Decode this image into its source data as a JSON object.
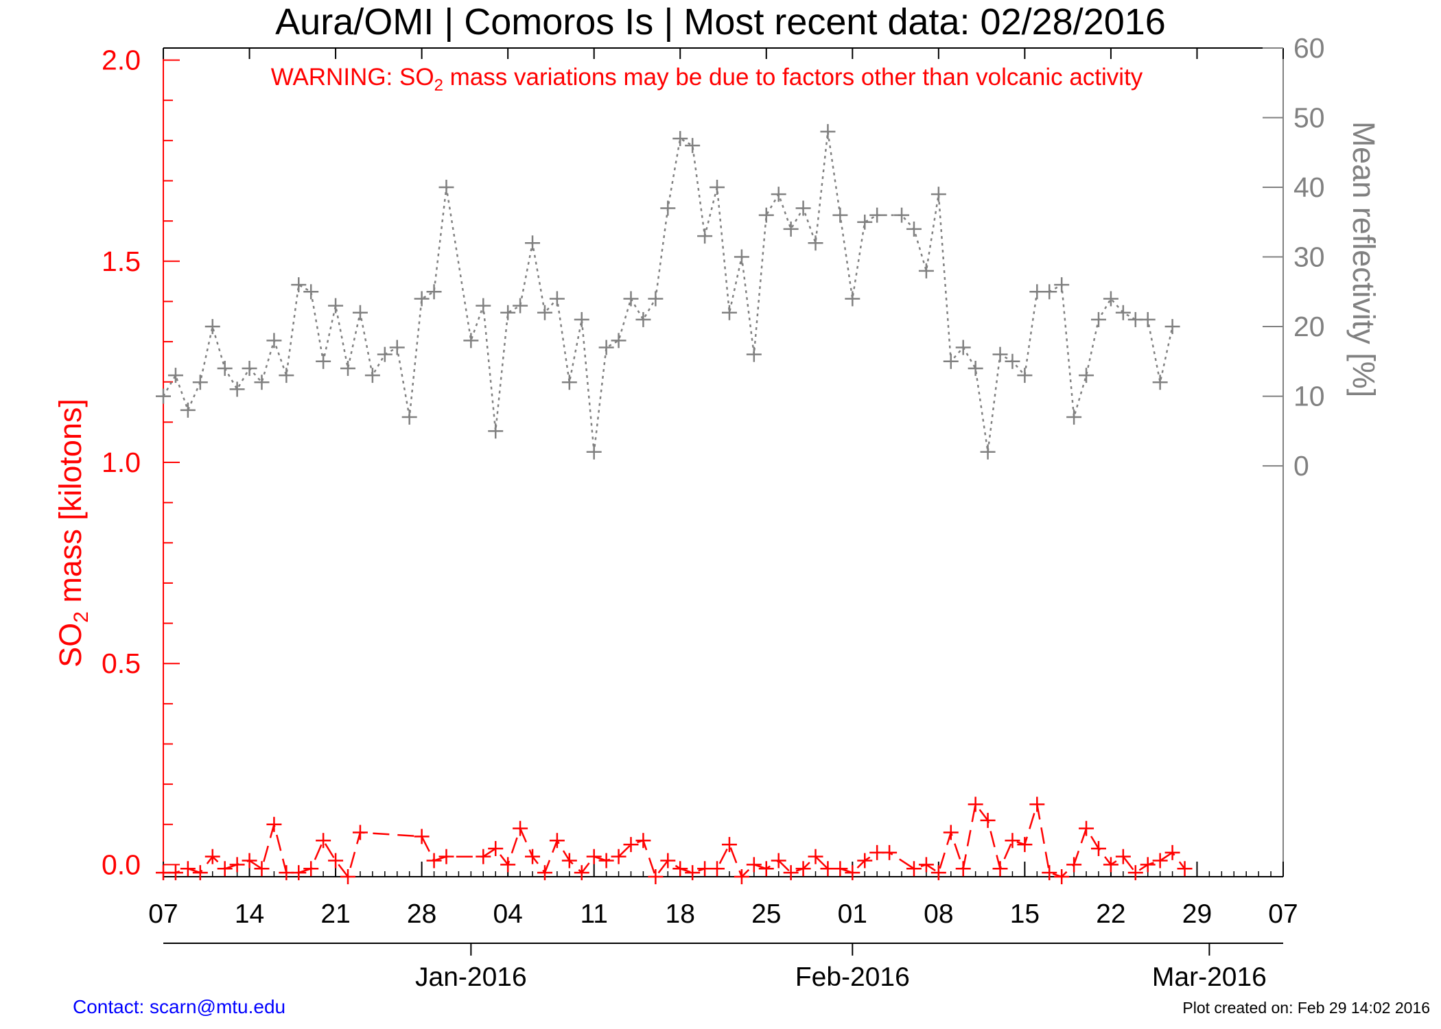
{
  "title": "Aura/OMI | Comoros Is | Most recent data: 02/28/2016",
  "warning": {
    "prefix": "WARNING: SO",
    "sub": "2",
    "suffix": " mass variations may be due to factors other than volcanic activity"
  },
  "footer": {
    "contact": "Contact: scarn@mtu.edu",
    "created": "Plot created on: Feb 29 14:02 2016"
  },
  "colors": {
    "so2": "#ff0000",
    "reflectivity": "#808080",
    "axis": "#000000"
  },
  "chart_data": {
    "type": "line",
    "x_start": "2015-12-07",
    "x_end": "2016-03-07",
    "x_ticks": [
      "07",
      "14",
      "21",
      "28",
      "04",
      "11",
      "18",
      "25",
      "01",
      "08",
      "15",
      "22",
      "29",
      "07"
    ],
    "x_tick_dates": [
      "2015-12-07",
      "2015-12-14",
      "2015-12-21",
      "2015-12-28",
      "2016-01-04",
      "2016-01-11",
      "2016-01-18",
      "2016-01-25",
      "2016-02-01",
      "2016-02-08",
      "2016-02-15",
      "2016-02-22",
      "2016-02-29",
      "2016-03-07"
    ],
    "month_labels": [
      "Jan-2016",
      "Feb-2016",
      "Mar-2016"
    ],
    "month_dates": [
      "2016-01-01",
      "2016-02-01",
      "2016-03-01"
    ],
    "y_left": {
      "label_prefix": "SO",
      "label_sub": "2",
      "label_suffix": " mass [kilotons]",
      "range": [
        -0.03,
        2.03
      ],
      "ticks": [
        "0.0",
        "0.5",
        "1.0",
        "1.5",
        "2.0"
      ],
      "tick_values": [
        0,
        0.5,
        1.0,
        1.5,
        2.0
      ]
    },
    "y_right": {
      "label": "Mean reflectivity [%]",
      "range": [
        -59,
        60
      ],
      "ticks": [
        "0",
        "10",
        "20",
        "30",
        "40",
        "50",
        "60"
      ],
      "tick_values": [
        0,
        10,
        20,
        30,
        40,
        50,
        60
      ]
    },
    "series": [
      {
        "axis": "left",
        "style": "dashed",
        "color": "#ff0000",
        "points": [
          [
            "2015-12-07",
            -0.02
          ],
          [
            "2015-12-08",
            -0.02
          ],
          [
            "2015-12-09",
            -0.01
          ],
          [
            "2015-12-10",
            -0.02
          ],
          [
            "2015-12-11",
            0.02
          ],
          [
            "2015-12-12",
            -0.01
          ],
          [
            "2015-12-13",
            0.0
          ],
          [
            "2015-12-14",
            0.01
          ],
          [
            "2015-12-15",
            -0.01
          ],
          [
            "2015-12-16",
            0.1
          ],
          [
            "2015-12-17",
            -0.02
          ],
          [
            "2015-12-18",
            -0.02
          ],
          [
            "2015-12-19",
            -0.01
          ],
          [
            "2015-12-20",
            0.06
          ],
          [
            "2015-12-21",
            0.01
          ],
          [
            "2015-12-22",
            -0.03
          ],
          [
            "2015-12-23",
            0.08
          ],
          [
            "2015-12-28",
            0.07
          ],
          [
            "2015-12-29",
            0.01
          ],
          [
            "2015-12-30",
            0.02
          ],
          [
            "2016-01-02",
            0.02
          ],
          [
            "2016-01-03",
            0.04
          ],
          [
            "2016-01-04",
            0.0
          ],
          [
            "2016-01-05",
            0.09
          ],
          [
            "2016-01-06",
            0.02
          ],
          [
            "2016-01-07",
            -0.02
          ],
          [
            "2016-01-08",
            0.06
          ],
          [
            "2016-01-09",
            0.01
          ],
          [
            "2016-01-10",
            -0.02
          ],
          [
            "2016-01-11",
            0.02
          ],
          [
            "2016-01-12",
            0.01
          ],
          [
            "2016-01-13",
            0.02
          ],
          [
            "2016-01-14",
            0.05
          ],
          [
            "2016-01-15",
            0.06
          ],
          [
            "2016-01-16",
            -0.03
          ],
          [
            "2016-01-17",
            0.01
          ],
          [
            "2016-01-18",
            -0.01
          ],
          [
            "2016-01-19",
            -0.02
          ],
          [
            "2016-01-20",
            -0.01
          ],
          [
            "2016-01-21",
            -0.01
          ],
          [
            "2016-01-22",
            0.05
          ],
          [
            "2016-01-23",
            -0.03
          ],
          [
            "2016-01-24",
            0.0
          ],
          [
            "2016-01-25",
            -0.01
          ],
          [
            "2016-01-26",
            0.01
          ],
          [
            "2016-01-27",
            -0.02
          ],
          [
            "2016-01-28",
            -0.01
          ],
          [
            "2016-01-29",
            0.02
          ],
          [
            "2016-01-30",
            -0.01
          ],
          [
            "2016-01-31",
            -0.01
          ],
          [
            "2016-02-01",
            -0.02
          ],
          [
            "2016-02-02",
            0.01
          ],
          [
            "2016-02-03",
            0.03
          ],
          [
            "2016-02-04",
            0.03
          ],
          [
            "2016-02-06",
            -0.01
          ],
          [
            "2016-02-07",
            0.0
          ],
          [
            "2016-02-08",
            -0.02
          ],
          [
            "2016-02-09",
            0.08
          ],
          [
            "2016-02-10",
            -0.01
          ],
          [
            "2016-02-11",
            0.15
          ],
          [
            "2016-02-12",
            0.11
          ],
          [
            "2016-02-13",
            -0.01
          ],
          [
            "2016-02-14",
            0.06
          ],
          [
            "2016-02-15",
            0.05
          ],
          [
            "2016-02-16",
            0.15
          ],
          [
            "2016-02-17",
            -0.02
          ],
          [
            "2016-02-18",
            -0.03
          ],
          [
            "2016-02-19",
            0.0
          ],
          [
            "2016-02-20",
            0.09
          ],
          [
            "2016-02-21",
            0.04
          ],
          [
            "2016-02-22",
            0.0
          ],
          [
            "2016-02-23",
            0.02
          ],
          [
            "2016-02-24",
            -0.02
          ],
          [
            "2016-02-25",
            0.0
          ],
          [
            "2016-02-26",
            0.01
          ],
          [
            "2016-02-27",
            0.03
          ],
          [
            "2016-02-28",
            -0.01
          ]
        ]
      },
      {
        "axis": "right",
        "style": "dotted",
        "color": "#808080",
        "points": [
          [
            "2015-12-07",
            10
          ],
          [
            "2015-12-08",
            13
          ],
          [
            "2015-12-09",
            8
          ],
          [
            "2015-12-10",
            12
          ],
          [
            "2015-12-11",
            20
          ],
          [
            "2015-12-12",
            14
          ],
          [
            "2015-12-13",
            11
          ],
          [
            "2015-12-14",
            14
          ],
          [
            "2015-12-15",
            12
          ],
          [
            "2015-12-16",
            18
          ],
          [
            "2015-12-17",
            13
          ],
          [
            "2015-12-18",
            26
          ],
          [
            "2015-12-19",
            25
          ],
          [
            "2015-12-20",
            15
          ],
          [
            "2015-12-21",
            23
          ],
          [
            "2015-12-22",
            14
          ],
          [
            "2015-12-23",
            22
          ],
          [
            "2015-12-24",
            13
          ],
          [
            "2015-12-25",
            16
          ],
          [
            "2015-12-26",
            17
          ],
          [
            "2015-12-27",
            7
          ],
          [
            "2015-12-28",
            24
          ],
          [
            "2015-12-29",
            25
          ],
          [
            "2015-12-30",
            40
          ],
          [
            "2016-01-01",
            18
          ],
          [
            "2016-01-02",
            23
          ],
          [
            "2016-01-03",
            5
          ],
          [
            "2016-01-04",
            22
          ],
          [
            "2016-01-05",
            23
          ],
          [
            "2016-01-06",
            32
          ],
          [
            "2016-01-07",
            22
          ],
          [
            "2016-01-08",
            24
          ],
          [
            "2016-01-09",
            12
          ],
          [
            "2016-01-10",
            21
          ],
          [
            "2016-01-11",
            2
          ],
          [
            "2016-01-12",
            17
          ],
          [
            "2016-01-13",
            18
          ],
          [
            "2016-01-14",
            24
          ],
          [
            "2016-01-15",
            21
          ],
          [
            "2016-01-16",
            24
          ],
          [
            "2016-01-17",
            37
          ],
          [
            "2016-01-18",
            47
          ],
          [
            "2016-01-19",
            46
          ],
          [
            "2016-01-20",
            33
          ],
          [
            "2016-01-21",
            40
          ],
          [
            "2016-01-22",
            22
          ],
          [
            "2016-01-23",
            30
          ],
          [
            "2016-01-24",
            16
          ],
          [
            "2016-01-25",
            36
          ],
          [
            "2016-01-26",
            39
          ],
          [
            "2016-01-27",
            34
          ],
          [
            "2016-01-28",
            37
          ],
          [
            "2016-01-29",
            32
          ],
          [
            "2016-01-30",
            48
          ],
          [
            "2016-01-31",
            36
          ],
          [
            "2016-02-01",
            24
          ],
          [
            "2016-02-02",
            35
          ],
          [
            "2016-02-03",
            36
          ],
          [
            "2016-02-05",
            36
          ],
          [
            "2016-02-06",
            34
          ],
          [
            "2016-02-07",
            28
          ],
          [
            "2016-02-08",
            39
          ],
          [
            "2016-02-09",
            15
          ],
          [
            "2016-02-10",
            17
          ],
          [
            "2016-02-11",
            14
          ],
          [
            "2016-02-12",
            2
          ],
          [
            "2016-02-13",
            16
          ],
          [
            "2016-02-14",
            15
          ],
          [
            "2016-02-15",
            13
          ],
          [
            "2016-02-16",
            25
          ],
          [
            "2016-02-17",
            25
          ],
          [
            "2016-02-18",
            26
          ],
          [
            "2016-02-19",
            7
          ],
          [
            "2016-02-20",
            13
          ],
          [
            "2016-02-21",
            21
          ],
          [
            "2016-02-22",
            24
          ],
          [
            "2016-02-23",
            22
          ],
          [
            "2016-02-24",
            21
          ],
          [
            "2016-02-25",
            21
          ],
          [
            "2016-02-26",
            12
          ],
          [
            "2016-02-27",
            20
          ]
        ]
      }
    ]
  }
}
